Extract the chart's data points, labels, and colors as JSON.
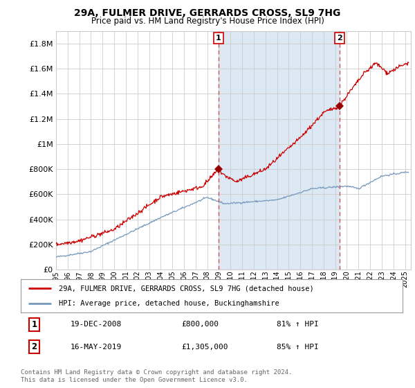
{
  "title": "29A, FULMER DRIVE, GERRARDS CROSS, SL9 7HG",
  "subtitle": "Price paid vs. HM Land Registry's House Price Index (HPI)",
  "ylim": [
    0,
    1900000
  ],
  "yticks": [
    0,
    200000,
    400000,
    600000,
    800000,
    1000000,
    1200000,
    1400000,
    1600000,
    1800000
  ],
  "xlim_start": 1995.0,
  "xlim_end": 2025.5,
  "sale1_x": 2008.97,
  "sale1_y": 800000,
  "sale1_label": "1",
  "sale1_date": "19-DEC-2008",
  "sale1_price": "£800,000",
  "sale1_hpi": "81% ↑ HPI",
  "sale2_x": 2019.37,
  "sale2_y": 1305000,
  "sale2_label": "2",
  "sale2_date": "16-MAY-2019",
  "sale2_price": "£1,305,000",
  "sale2_hpi": "85% ↑ HPI",
  "line_color_red": "#cc0000",
  "line_color_blue": "#7799bb",
  "shade_color": "#dde8f5",
  "vline_color": "#cc4444",
  "marker_color": "#990000",
  "grid_color": "#cccccc",
  "background_color": "#ffffff",
  "legend_label_red": "29A, FULMER DRIVE, GERRARDS CROSS, SL9 7HG (detached house)",
  "legend_label_blue": "HPI: Average price, detached house, Buckinghamshire",
  "footer": "Contains HM Land Registry data © Crown copyright and database right 2024.\nThis data is licensed under the Open Government Licence v3.0."
}
